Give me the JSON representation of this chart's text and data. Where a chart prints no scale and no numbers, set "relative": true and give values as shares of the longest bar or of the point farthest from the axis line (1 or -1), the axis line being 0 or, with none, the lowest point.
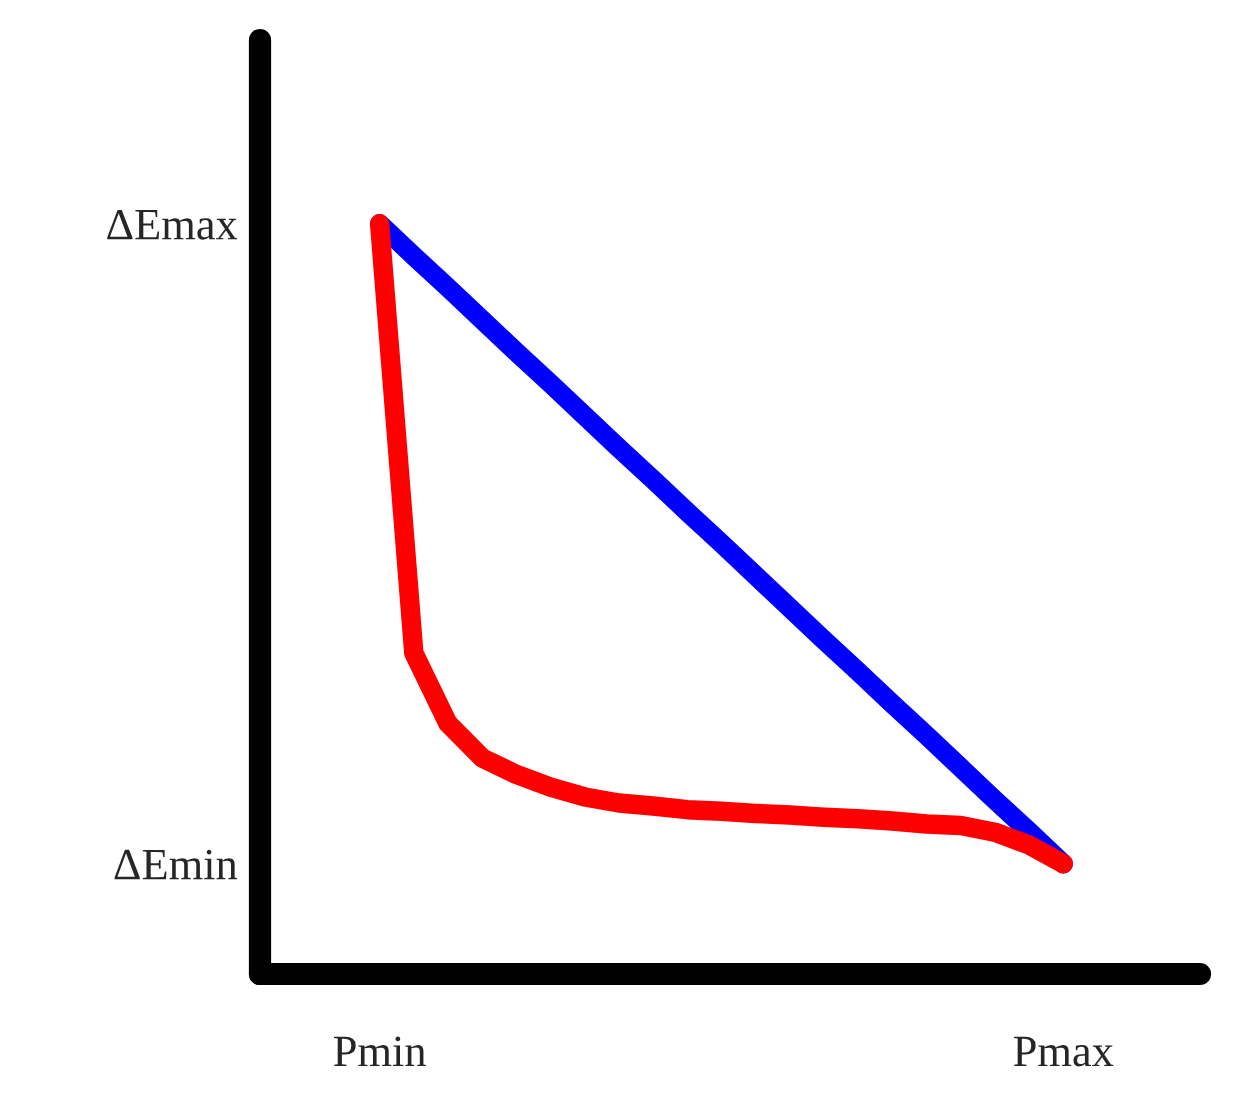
{
  "chart_data": {
    "type": "line",
    "relative": true,
    "categories": [
      "Pmin",
      null,
      null,
      null,
      null,
      null,
      null,
      null,
      null,
      null,
      null,
      null,
      null,
      null,
      null,
      null,
      null,
      null,
      null,
      null,
      "Pmax"
    ],
    "annotations": [
      "ΔEmin",
      "ΔEmax"
    ],
    "marker": "none",
    "line_style": "solid",
    "series": [
      {
        "color": "#0000ff",
        "values": [
          1.0,
          0.957,
          0.915,
          0.872,
          0.829,
          0.787,
          0.744,
          0.701,
          0.659,
          0.616,
          0.574,
          0.531,
          0.488,
          0.445,
          0.403,
          0.36,
          0.318,
          0.275,
          0.232,
          0.19,
          0.147
        ]
      },
      {
        "color": "#ff0000",
        "values": [
          1.0,
          0.428,
          0.334,
          0.288,
          0.266,
          0.249,
          0.236,
          0.228,
          0.224,
          0.219,
          0.217,
          0.214,
          0.212,
          0.209,
          0.207,
          0.204,
          0.2,
          0.198,
          0.189,
          0.172,
          0.147
        ]
      }
    ]
  }
}
